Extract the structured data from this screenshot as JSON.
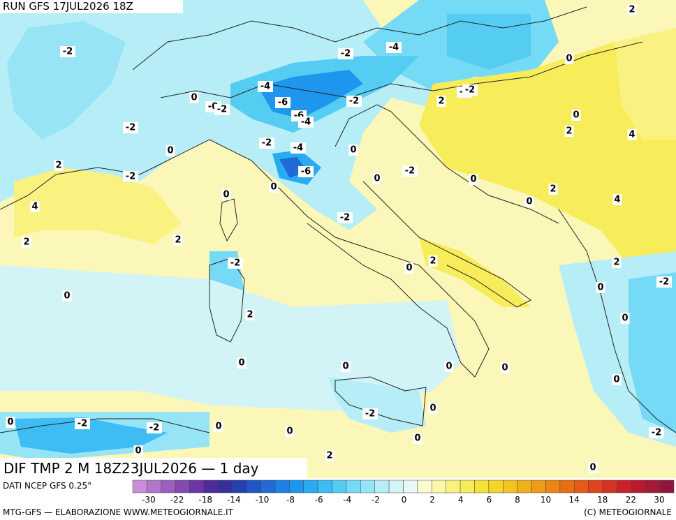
{
  "header": {
    "run": "RUN GFS 17JUL2026 18Z"
  },
  "title": "DIF TMP 2 M 18Z23JUL2026 — 1 day",
  "source": "DATI NCEP GFS 0.25°",
  "footer_left": "MTG-GFS — ELABORAZIONE WWW.METEOGIORNALE.IT",
  "footer_right": "(C) METEOGIORNALE",
  "colorbar": {
    "colors": [
      "#c98ed8",
      "#b276cc",
      "#9c5fbf",
      "#8649b2",
      "#6e35a5",
      "#4e2a9a",
      "#35309c",
      "#2540b0",
      "#1f55c4",
      "#1f6ad6",
      "#1d80e4",
      "#1f96ee",
      "#2aaaf2",
      "#3dbdf3",
      "#55cdf3",
      "#74daf5",
      "#96e4f6",
      "#b6edf7",
      "#d2f4f7",
      "#e8f9f5",
      "#fbfbcf",
      "#fbf7a8",
      "#f9f280",
      "#f7ec5a",
      "#f5e338",
      "#f4d52a",
      "#f2c422",
      "#f0b01c",
      "#ee9b18",
      "#ec8516",
      "#e96e16",
      "#e45a18",
      "#de451c",
      "#d43222",
      "#c82228",
      "#b91a30",
      "#a51838",
      "#92163c"
    ],
    "ticks": [
      -30,
      -22,
      -18,
      -14,
      -10,
      -8,
      -6,
      -4,
      -2,
      0,
      2,
      4,
      6,
      8,
      10,
      14,
      18,
      22,
      30
    ]
  },
  "contour_labels": [
    2,
    -2,
    -2,
    -4,
    0,
    -4,
    0,
    {
      "value": 0,
      "label": "-0"
    },
    -2,
    -6,
    {
      "value": 0,
      "label": "-0"
    },
    -2,
    2,
    -2,
    -6,
    -4,
    0,
    -2,
    2,
    4,
    0,
    -2,
    -4,
    0,
    2,
    -6,
    -2,
    -2,
    0,
    0,
    0,
    2,
    0,
    0,
    4,
    4,
    -2,
    2,
    2,
    -2,
    2,
    0,
    2,
    0,
    -2,
    0,
    2,
    0,
    0,
    0,
    0,
    0,
    0,
    0,
    -2,
    0,
    -2,
    -2,
    0,
    0,
    0,
    -2,
    0,
    2,
    0
  ]
}
